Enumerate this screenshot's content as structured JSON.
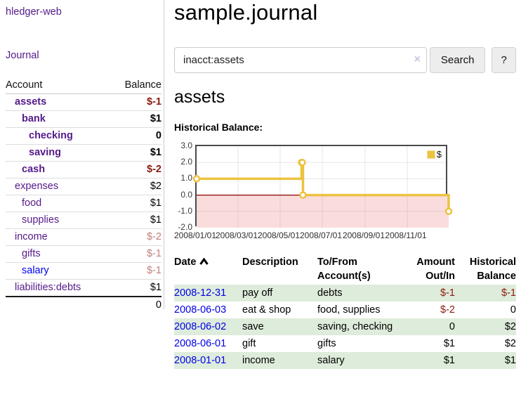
{
  "palette": {
    "purple_link": "#551a8b",
    "blue_link": "#0000ee",
    "date_link": "#0000e8",
    "negative_strong": "#8b1a10",
    "negative_muted": "#c47e7e",
    "row_shade_green": "#deecdb",
    "divider_gray": "#cccccc"
  },
  "sidebar": {
    "brand": "hledger-web",
    "nav": {
      "journal": "Journal"
    },
    "accounts": {
      "col_account": "Account",
      "col_balance": "Balance",
      "rows": [
        {
          "name": "assets",
          "depth": 1,
          "bold": true,
          "balance": "$-1",
          "neg": "strong"
        },
        {
          "name": "bank",
          "depth": 2,
          "bold": true,
          "balance": "$1",
          "neg": ""
        },
        {
          "name": "checking",
          "depth": 3,
          "bold": true,
          "balance": "0",
          "neg": ""
        },
        {
          "name": "saving",
          "depth": 3,
          "bold": true,
          "balance": "$1",
          "neg": ""
        },
        {
          "name": "cash",
          "depth": 2,
          "bold": true,
          "balance": "$-2",
          "neg": "strong"
        },
        {
          "name": "expenses",
          "depth": 1,
          "bold": false,
          "balance": "$2",
          "neg": ""
        },
        {
          "name": "food",
          "depth": 2,
          "bold": false,
          "balance": "$1",
          "neg": ""
        },
        {
          "name": "supplies",
          "depth": 2,
          "bold": false,
          "balance": "$1",
          "neg": ""
        },
        {
          "name": "income",
          "depth": 1,
          "bold": false,
          "balance": "$-2",
          "neg": "muted"
        },
        {
          "name": "gifts",
          "depth": 2,
          "bold": false,
          "balance": "$-1",
          "neg": "muted"
        },
        {
          "name": "salary",
          "depth": 2,
          "bold": false,
          "balance": "$-1",
          "neg": "muted",
          "link_color": "blue"
        },
        {
          "name": "liabilities:debts",
          "depth": 1,
          "bold": false,
          "balance": "$1",
          "neg": ""
        }
      ],
      "total": "0"
    }
  },
  "main": {
    "title": "sample.journal",
    "search": {
      "value": "inacct:assets",
      "clear_icon": "×",
      "search_button": "Search",
      "help_button": "?"
    },
    "account_heading": "assets",
    "chart_label": "Historical Balance:",
    "register": {
      "headers": {
        "date": "Date",
        "description": "Description",
        "accounts": "To/From Account(s)",
        "amount": "Amount Out/In",
        "balance": "Historical Balance"
      },
      "rows": [
        {
          "date": "2008-12-31",
          "description": "pay off",
          "accounts": "debts",
          "amount": "$-1",
          "amount_neg": true,
          "balance": "$-1",
          "balance_neg": true,
          "shaded": true
        },
        {
          "date": "2008-06-03",
          "description": "eat & shop",
          "accounts": "food, supplies",
          "amount": "$-2",
          "amount_neg": true,
          "balance": "0",
          "balance_neg": false,
          "shaded": false
        },
        {
          "date": "2008-06-02",
          "description": "save",
          "accounts": "saving, checking",
          "amount": "0",
          "amount_neg": false,
          "balance": "$2",
          "balance_neg": false,
          "shaded": true
        },
        {
          "date": "2008-06-01",
          "description": "gift",
          "accounts": "gifts",
          "amount": "$1",
          "amount_neg": false,
          "balance": "$2",
          "balance_neg": false,
          "shaded": false
        },
        {
          "date": "2008-01-01",
          "description": "income",
          "accounts": "salary",
          "amount": "$1",
          "amount_neg": false,
          "balance": "$1",
          "balance_neg": false,
          "shaded": true
        }
      ]
    }
  },
  "chart_data": {
    "type": "line",
    "step": true,
    "title": "Historical Balance:",
    "series": [
      {
        "name": "$",
        "points": [
          [
            "2008-01-01",
            1
          ],
          [
            "2008-06-01",
            2
          ],
          [
            "2008-06-02",
            2
          ],
          [
            "2008-06-03",
            0
          ],
          [
            "2008-12-31",
            -1
          ]
        ]
      }
    ],
    "x_range": [
      "2008-01-01",
      "2008-12-31"
    ],
    "ylim": [
      -2,
      3
    ],
    "y_ticks": [
      3,
      2,
      1,
      0,
      -1,
      -2
    ],
    "x_ticks": [
      {
        "date": "2008-01-01",
        "label": "2008/01/01"
      },
      {
        "date": "2008-03-01",
        "label": "2008/03/01"
      },
      {
        "date": "2008-05-01",
        "label": "2008/05/01"
      },
      {
        "date": "2008-07-01",
        "label": "2008/07/01"
      },
      {
        "date": "2008-09-01",
        "label": "2008/09/01"
      },
      {
        "date": "2008-11-01",
        "label": "2008/11/01"
      }
    ],
    "legend": {
      "label": "$",
      "position": "top-right"
    },
    "grid": true,
    "colors": {
      "line": "#edc240",
      "marker_fill": "#ffffff",
      "negative_region": "#fbdcdc",
      "zero_line": "#8b0000",
      "gridline": "rgba(120,120,120,0.18)",
      "border": "#4a4a4a"
    }
  }
}
